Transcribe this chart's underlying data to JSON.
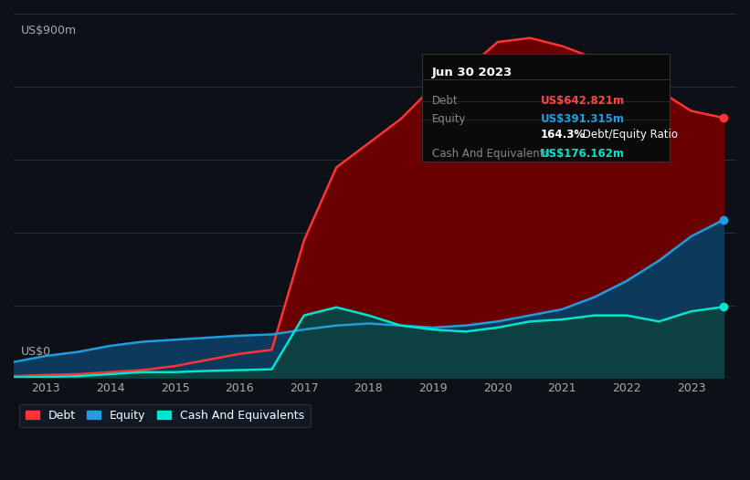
{
  "background_color": "#0d1117",
  "plot_bg_color": "#0d1117",
  "title_box": {
    "date": "Jun 30 2023",
    "rows": [
      {
        "label": "Debt",
        "value": "US$642.821m",
        "value_color": "#ff4444"
      },
      {
        "label": "Equity",
        "value": "US$391.315m",
        "value_color": "#1e9ede"
      },
      {
        "label": "",
        "value": "164.3% Debt/Equity Ratio",
        "value_color": "#ffffff"
      },
      {
        "label": "Cash And Equivalents",
        "value": "US$176.162m",
        "value_color": "#00e5cc"
      }
    ]
  },
  "y_label_top": "US$900m",
  "y_label_bottom": "US$0",
  "x_ticks": [
    "2013",
    "2014",
    "2015",
    "2016",
    "2017",
    "2018",
    "2019",
    "2020",
    "2021",
    "2022",
    "2023"
  ],
  "debt_color": "#ff3333",
  "debt_fill_color": "#6b0000",
  "equity_color": "#1e9ede",
  "equity_fill_color": "#0d3a5c",
  "cash_color": "#00e5cc",
  "cash_fill_color": "#0d4040",
  "legend": [
    {
      "label": "Debt",
      "color": "#ff3333"
    },
    {
      "label": "Equity",
      "color": "#1e9ede"
    },
    {
      "label": "Cash And Equivalents",
      "color": "#00e5cc"
    }
  ],
  "years": [
    2012.5,
    2013.0,
    2013.5,
    2014.0,
    2014.5,
    2015.0,
    2015.5,
    2016.0,
    2016.5,
    2017.0,
    2017.5,
    2018.0,
    2018.5,
    2019.0,
    2019.5,
    2020.0,
    2020.5,
    2021.0,
    2021.5,
    2022.0,
    2022.5,
    2023.0,
    2023.5
  ],
  "debt": [
    5,
    8,
    10,
    15,
    20,
    30,
    45,
    60,
    70,
    340,
    520,
    580,
    640,
    720,
    760,
    830,
    840,
    820,
    790,
    750,
    710,
    660,
    643
  ],
  "equity": [
    40,
    55,
    65,
    80,
    90,
    95,
    100,
    105,
    108,
    120,
    130,
    135,
    130,
    125,
    130,
    140,
    155,
    170,
    200,
    240,
    290,
    350,
    391
  ],
  "cash": [
    2,
    3,
    5,
    10,
    15,
    15,
    18,
    20,
    22,
    155,
    175,
    155,
    130,
    120,
    115,
    125,
    140,
    145,
    155,
    155,
    140,
    165,
    176
  ],
  "ylim": [
    0,
    900
  ],
  "xlim": [
    2012.5,
    2023.7
  ],
  "grid_lines": [
    180,
    360,
    540,
    720,
    900
  ]
}
